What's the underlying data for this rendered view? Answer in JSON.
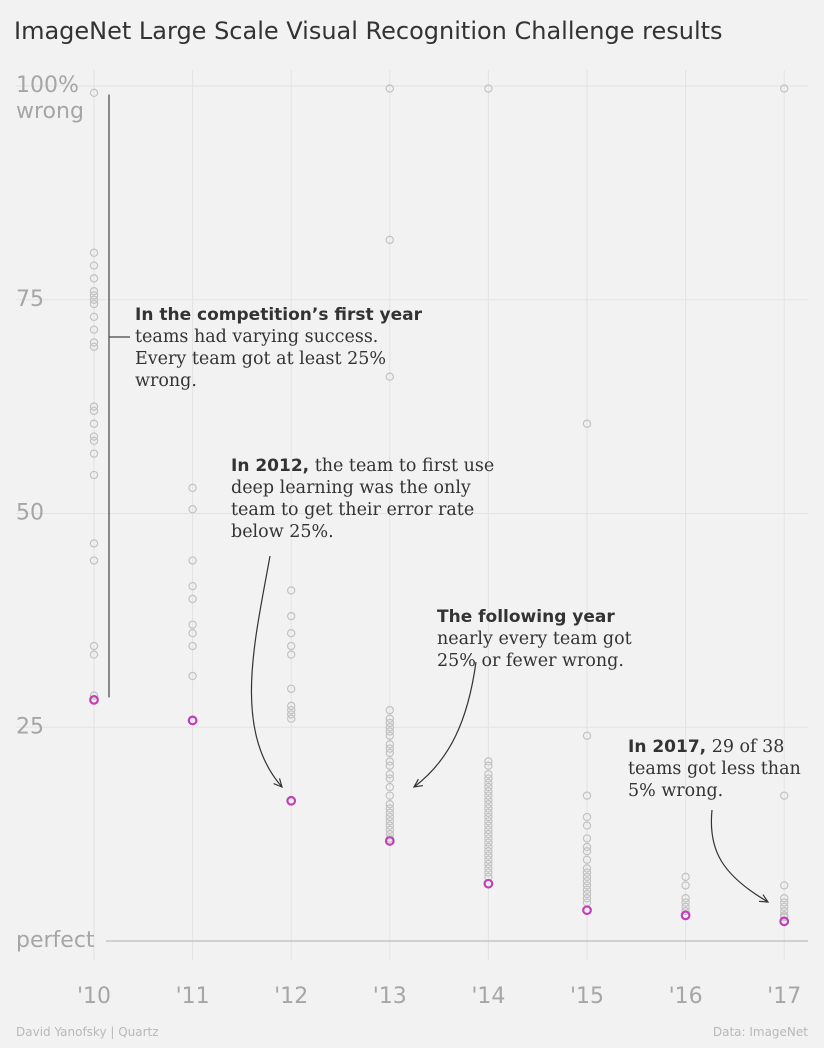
{
  "chart_data": {
    "type": "scatter",
    "title": "ImageNet Large Scale Visual Recognition Challenge results",
    "x": [
      "'10",
      "'11",
      "'12",
      "'13",
      "'14",
      "'15",
      "'16",
      "'17"
    ],
    "ylim": [
      0,
      100
    ],
    "y_ticks": [
      {
        "value": 100,
        "lines": [
          "100%",
          "wrong"
        ]
      },
      {
        "value": 75,
        "lines": [
          "75"
        ]
      },
      {
        "value": 50,
        "lines": [
          "50"
        ]
      },
      {
        "value": 25,
        "lines": [
          "25"
        ]
      },
      {
        "value": 0,
        "lines": [
          "perfect"
        ]
      }
    ],
    "grid": true,
    "colors": {
      "point": "#c2c2c2",
      "best": "#c040b8"
    },
    "series": [
      {
        "values": [
          [
            99.2,
            80.5,
            79,
            77.5,
            76,
            75.5,
            75,
            74.5,
            73,
            71.5,
            70,
            69.5,
            62.5,
            62,
            60.5,
            59,
            58.5,
            57,
            54.5,
            46.5,
            44.5,
            34.5,
            33.5,
            28.7
          ],
          [
            53,
            50.5,
            44.5,
            41.5,
            40,
            37,
            36,
            34.5,
            31
          ],
          [
            41,
            38,
            36,
            34.5,
            33.5,
            29.5,
            27.5,
            27,
            26.5,
            26
          ],
          [
            99.7,
            82,
            66,
            27,
            26,
            25.5,
            25,
            24.5,
            24,
            23,
            22.5,
            22,
            21,
            20.5,
            19.5,
            19,
            18,
            17,
            16,
            15.5,
            15,
            14.5,
            14,
            13.5,
            13,
            12.5,
            12
          ],
          [
            99.7,
            21,
            20.5,
            19.5,
            19,
            18.5,
            18,
            17.5,
            17,
            16.5,
            16,
            15.5,
            15,
            14.5,
            14,
            13.5,
            13,
            12.5,
            12,
            11.5,
            11,
            10.5,
            10,
            9.5,
            9,
            8.5,
            8,
            7.5
          ],
          [
            60.5,
            24,
            17,
            14.5,
            13.5,
            12,
            11,
            10.5,
            9.5,
            8.5,
            8,
            7.5,
            7,
            6.5,
            6,
            5.5,
            5,
            4.5
          ],
          [
            7.5,
            6.5,
            5,
            4.5,
            4,
            3.5
          ],
          [
            99.7,
            17,
            6.5,
            5,
            4.5,
            4,
            3.5,
            3,
            3,
            2.8
          ]
        ]
      },
      {
        "values": [
          28.2,
          25.8,
          16.4,
          11.7,
          6.7,
          3.6,
          3.0,
          2.3
        ]
      }
    ],
    "annotations": [
      {
        "bold": "In the competition’s first year",
        "lines": [
          "teams had varying success.",
          "Every team got at least 25%",
          "wrong."
        ]
      },
      {
        "bold": "In 2012,",
        "lines": [
          "the team to first use",
          "deep learning was the only",
          "team to get their error rate",
          "below 25%."
        ]
      },
      {
        "bold": "The following year",
        "lines": [
          "nearly every team got",
          "25% or fewer wrong."
        ]
      },
      {
        "bold": "In 2017,",
        "lines": [
          "29 of 38",
          "teams got less than",
          "5% wrong."
        ]
      }
    ]
  },
  "footer": {
    "left": "David Yanofsky | Quartz",
    "right": "Data: ImageNet"
  }
}
